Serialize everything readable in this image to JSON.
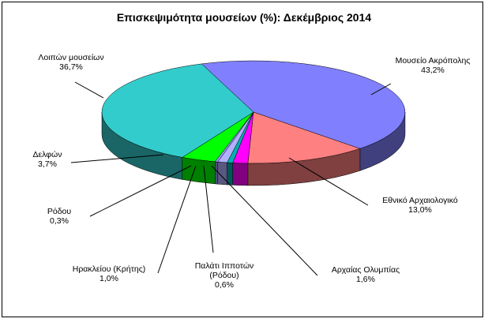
{
  "chart_data": {
    "type": "pie",
    "title": "Επισκεψιμότητα μουσείων (%): Δεκέμβριος 2014",
    "slices": [
      {
        "label": "Μουσείο Ακρόπολης",
        "value": 43.2,
        "display": "43,2%",
        "color": "#8080ff",
        "side_color": "#40407f"
      },
      {
        "label": "Εθνικό Αρχαιολογικό",
        "value": 13.0,
        "display": "13,0%",
        "color": "#ff8080",
        "side_color": "#804040"
      },
      {
        "label": "Αρχαίας Ολυμπίας",
        "value": 1.6,
        "display": "1,6%",
        "color": "#ff00ff",
        "side_color": "#800080"
      },
      {
        "label": "Παλάτι Ιπποτών (Ρόδου)",
        "value": 0.6,
        "display": "0,6%",
        "color": "#00b0b0",
        "side_color": "#005858"
      },
      {
        "label": "Ηρακλείου (Κρήτης)",
        "value": 1.0,
        "display": "1,0%",
        "color": "#b0b0ff",
        "side_color": "#585880"
      },
      {
        "label": "Ρόδου",
        "value": 0.3,
        "display": "0,3%",
        "color": "#9999ff",
        "side_color": "#4c4c80"
      },
      {
        "label": "Δελφών",
        "value": 3.7,
        "display": "3,7%",
        "color": "#00ff00",
        "side_color": "#008000"
      },
      {
        "label": "Λοιπών μουσείων",
        "value": 36.7,
        "display": "36,7%",
        "color": "#33cccc",
        "side_color": "#1a6666"
      }
    ],
    "legend": "none",
    "three_d": true
  }
}
